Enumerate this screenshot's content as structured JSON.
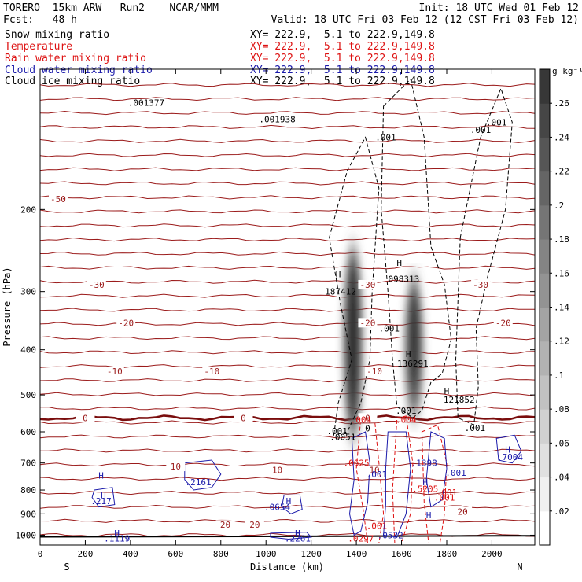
{
  "header": {
    "left_line1": "TORERO  15km ARW   Run2    NCAR/MMM",
    "left_line2": "Fcst:   48 h",
    "init": "Init: 18 UTC Wed 01 Feb 12",
    "valid": "Valid: 18 UTC Fri 03 Feb 12 (12 CST Fri 03 Feb 12)"
  },
  "fields": [
    {
      "name": "Snow mixing ratio",
      "color": "#000000",
      "xy": "XY= 222.9,  5.1 to 222.9,149.8"
    },
    {
      "name": "Temperature",
      "color": "#9b1b1b",
      "xy": "XY= 222.9,  5.1 to 222.9,149.8"
    },
    {
      "name": "Rain water mixing ratio",
      "color": "#dd1111",
      "xy": "XY= 222.9,  5.1 to 222.9,149.8"
    },
    {
      "name": "Cloud water mixing ratio",
      "color": "#1a1aaa",
      "xy": "XY= 222.9,  5.1 to 222.9,149.8"
    },
    {
      "name": "Cloud ice mixing ratio",
      "color": "#000000",
      "xy": "XY= 222.9,  5.1 to 222.9,149.8"
    }
  ],
  "chart_data": {
    "type": "heatmap",
    "xlabel": "Distance (km)",
    "ylabel": "Pressure (hPa)",
    "x_ticks": [
      0,
      200,
      400,
      600,
      800,
      1000,
      1200,
      1400,
      1600,
      1800,
      2000
    ],
    "y_ticks": [
      200,
      300,
      400,
      500,
      600,
      700,
      800,
      900,
      1000
    ],
    "xlim": [
      0,
      2190
    ],
    "ylim": [
      1050,
      100
    ],
    "y_scale": "log",
    "endpoints": {
      "left": "S",
      "right": "N"
    },
    "colorbar": {
      "units": "g kg⁻¹",
      "ticks": [
        ".02",
        ".04",
        ".06",
        ".08",
        ".1",
        ".12",
        ".14",
        ".16",
        ".18",
        ".2",
        ".22",
        ".24",
        ".26"
      ],
      "tick_values": [
        0.02,
        0.04,
        0.06,
        0.08,
        0.1,
        0.12,
        0.14,
        0.16,
        0.18,
        0.2,
        0.22,
        0.24,
        0.26
      ],
      "max": 0.28
    },
    "snow_columns": [
      {
        "center_km": 1385,
        "p_top": 240,
        "p_bottom": 620,
        "max": 0.28
      },
      {
        "center_km": 1655,
        "p_top": 280,
        "p_bottom": 560,
        "max": 0.24
      }
    ],
    "temperature_isotherms": [
      {
        "label": "-50",
        "p": 190,
        "x_km": 80
      },
      {
        "label": "-30",
        "p": 290,
        "x_km": 250
      },
      {
        "label": "-30",
        "p": 290,
        "x_km": 1450
      },
      {
        "label": "-30",
        "p": 290,
        "x_km": 1950
      },
      {
        "label": "-20",
        "p": 350,
        "x_km": 380
      },
      {
        "label": "-20",
        "p": 350,
        "x_km": 1450
      },
      {
        "label": "-20",
        "p": 350,
        "x_km": 2050
      },
      {
        "label": "-10",
        "p": 445,
        "x_km": 330
      },
      {
        "label": "-10",
        "p": 445,
        "x_km": 760
      },
      {
        "label": "-10",
        "p": 445,
        "x_km": 1480
      },
      {
        "label": "0",
        "p": 560,
        "x_km": 200
      },
      {
        "label": "0",
        "p": 560,
        "x_km": 900
      },
      {
        "label": "0",
        "p": 560,
        "x_km": 1450
      },
      {
        "label": "10",
        "p": 712,
        "x_km": 600
      },
      {
        "label": "10",
        "p": 725,
        "x_km": 1050
      },
      {
        "label": "10",
        "p": 725,
        "x_km": 1480
      },
      {
        "label": "20",
        "p": 950,
        "x_km": 820
      },
      {
        "label": "20",
        "p": 950,
        "x_km": 950
      },
      {
        "label": "20",
        "p": 890,
        "x_km": 1870
      }
    ],
    "annotations": [
      {
        "text": "H",
        "p": 275,
        "x_km": 1320,
        "color": "#000000"
      },
      {
        "text": "187412",
        "p": 300,
        "x_km": 1330,
        "color": "#000000"
      },
      {
        "text": "H",
        "p": 260,
        "x_km": 1590,
        "color": "#000000"
      },
      {
        "text": "098313",
        "p": 282,
        "x_km": 1610,
        "color": "#000000"
      },
      {
        "text": "H",
        "p": 408,
        "x_km": 1630,
        "color": "#000000"
      },
      {
        "text": "136291",
        "p": 428,
        "x_km": 1650,
        "color": "#000000"
      },
      {
        "text": "H",
        "p": 490,
        "x_km": 1800,
        "color": "#000000"
      },
      {
        "text": "121852",
        "p": 512,
        "x_km": 1855,
        "color": "#000000"
      },
      {
        "text": ".001",
        "p": 135,
        "x_km": 1950,
        "color": "#000000"
      },
      {
        "text": ".001",
        "p": 360,
        "x_km": 1545,
        "color": "#000000"
      },
      {
        "text": ".001",
        "p": 540,
        "x_km": 1620,
        "color": "#000000"
      },
      {
        "text": ".001",
        "p": 598,
        "x_km": 1315,
        "color": "#000000"
      },
      {
        "text": ".001",
        "p": 588,
        "x_km": 1925,
        "color": "#000000"
      },
      {
        "text": "0",
        "p": 590,
        "x_km": 1450,
        "color": "#000000"
      },
      {
        "text": ".0051",
        "p": 615,
        "x_km": 1340,
        "color": "#000000"
      },
      {
        "text": ".004",
        "p": 565,
        "x_km": 1420,
        "color": "#dd1111"
      },
      {
        "text": ".004",
        "p": 565,
        "x_km": 1620,
        "color": "#dd1111"
      },
      {
        "text": ".0625",
        "p": 700,
        "x_km": 1400,
        "color": "#dd1111"
      },
      {
        "text": ".1398",
        "p": 700,
        "x_km": 1700,
        "color": "#1a1aaa"
      },
      {
        "text": "H",
        "p": 770,
        "x_km": 1705,
        "color": "#1a1aaa"
      },
      {
        "text": ".5205",
        "p": 795,
        "x_km": 1705,
        "color": "#dd1111"
      },
      {
        "text": ".001",
        "p": 810,
        "x_km": 1800,
        "color": "#dd1111"
      },
      {
        "text": ".001",
        "p": 830,
        "x_km": 1790,
        "color": "#dd1111"
      },
      {
        "text": "H",
        "p": 905,
        "x_km": 1720,
        "color": "#1a1aaa"
      },
      {
        "text": ".001",
        "p": 955,
        "x_km": 1490,
        "color": "#dd1111"
      },
      {
        "text": ".0297",
        "p": 1015,
        "x_km": 1420,
        "color": "#dd1111"
      },
      {
        "text": ".001",
        "p": 740,
        "x_km": 1490,
        "color": "#1a1aaa"
      },
      {
        "text": ".001",
        "p": 735,
        "x_km": 1840,
        "color": "#1a1aaa"
      },
      {
        "text": ".0532",
        "p": 1000,
        "x_km": 1550,
        "color": "#1a1aaa"
      },
      {
        "text": "H",
        "p": 745,
        "x_km": 270,
        "color": "#1a1aaa"
      },
      {
        "text": ".2161",
        "p": 770,
        "x_km": 700,
        "color": "#1a1aaa"
      },
      {
        "text": "H",
        "p": 820,
        "x_km": 280,
        "color": "#1a1aaa"
      },
      {
        "text": ".217",
        "p": 845,
        "x_km": 270,
        "color": "#1a1aaa"
      },
      {
        "text": "H",
        "p": 845,
        "x_km": 1100,
        "color": "#1a1aaa"
      },
      {
        "text": ".0654",
        "p": 870,
        "x_km": 1050,
        "color": "#1a1aaa"
      },
      {
        "text": "H",
        "p": 990,
        "x_km": 1140,
        "color": "#1a1aaa"
      },
      {
        "text": ".2261",
        "p": 1015,
        "x_km": 1140,
        "color": "#1a1aaa"
      },
      {
        "text": "H",
        "p": 990,
        "x_km": 340,
        "color": "#1a1aaa"
      },
      {
        "text": ".1119",
        "p": 1015,
        "x_km": 340,
        "color": "#1a1aaa"
      },
      {
        "text": "H",
        "p": 655,
        "x_km": 2070,
        "color": "#1a1aaa"
      },
      {
        "text": ".7004",
        "p": 680,
        "x_km": 2080,
        "color": "#1a1aaa"
      },
      {
        "text": ".001377",
        "p": 118,
        "x_km": 470,
        "color": "#000000"
      },
      {
        "text": ".001938",
        "p": 128,
        "x_km": 1050,
        "color": "#000000"
      },
      {
        "text": ".001",
        "p": 140,
        "x_km": 1530,
        "color": "#000000"
      },
      {
        "text": ".001",
        "p": 130,
        "x_km": 2020,
        "color": "#000000"
      }
    ]
  },
  "icons": {
    "colorbar": "grayscale-colorbar"
  },
  "colors": {
    "temperature": "#9b1b1b",
    "rain": "#dd1111",
    "cloud_water": "#1a1aaa",
    "snow": "#000000",
    "zero_isotherm": "#7a0d0d"
  }
}
